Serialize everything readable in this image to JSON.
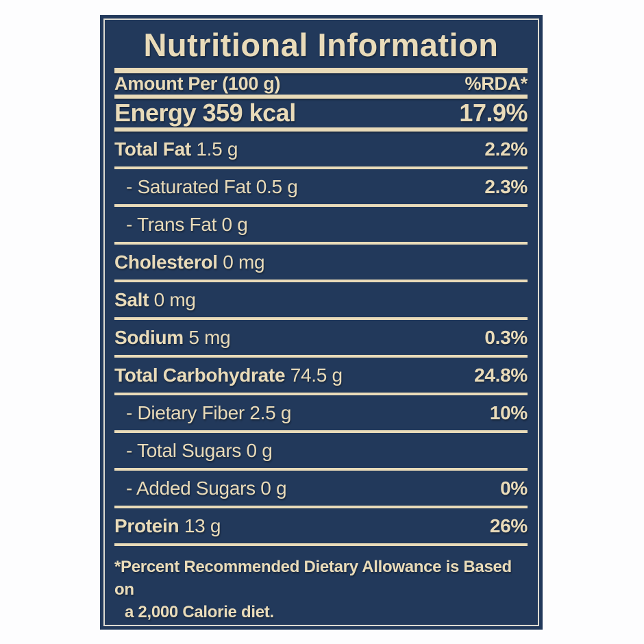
{
  "label": {
    "title": "Nutritional Information",
    "header": {
      "left": "Amount Per (100 g)",
      "right": "%RDA*"
    },
    "energy": {
      "name": "Energy",
      "amount": "359 kcal",
      "rda": "17.9%"
    },
    "rows": [
      {
        "name": "Total Fat",
        "amount": "1.5 g",
        "rda": "2.2%",
        "indent": false,
        "bold": true
      },
      {
        "name": "- Saturated Fat",
        "amount": "0.5 g",
        "rda": "2.3%",
        "indent": true,
        "bold": false
      },
      {
        "name": "- Trans Fat",
        "amount": "0 g",
        "rda": "",
        "indent": true,
        "bold": false
      },
      {
        "name": "Cholesterol",
        "amount": "0 mg",
        "rda": "",
        "indent": false,
        "bold": true
      },
      {
        "name": "Salt",
        "amount": "0 mg",
        "rda": "",
        "indent": false,
        "bold": true
      },
      {
        "name": "Sodium",
        "amount": "5 mg",
        "rda": "0.3%",
        "indent": false,
        "bold": true
      },
      {
        "name": "Total Carbohydrate",
        "amount": "74.5 g",
        "rda": "24.8%",
        "indent": false,
        "bold": true
      },
      {
        "name": "- Dietary Fiber",
        "amount": "2.5 g",
        "rda": "10%",
        "indent": true,
        "bold": false
      },
      {
        "name": "- Total Sugars",
        "amount": "0 g",
        "rda": "",
        "indent": true,
        "bold": false
      },
      {
        "name": "- Added Sugars",
        "amount": "0 g",
        "rda": "0%",
        "indent": true,
        "bold": false
      },
      {
        "name": "Protein",
        "amount": "13 g",
        "rda": "26%",
        "indent": false,
        "bold": true
      }
    ],
    "footnote": {
      "line1": "*Percent Recommended Dietary Allowance is Based on",
      "line2": "a 2,000 Calorie diet."
    },
    "colors": {
      "panel_background": "#22395B",
      "text_cream": "#E9DBB9",
      "inner_border": "#DEDCD2",
      "page_background": "#FDFDFE"
    }
  }
}
